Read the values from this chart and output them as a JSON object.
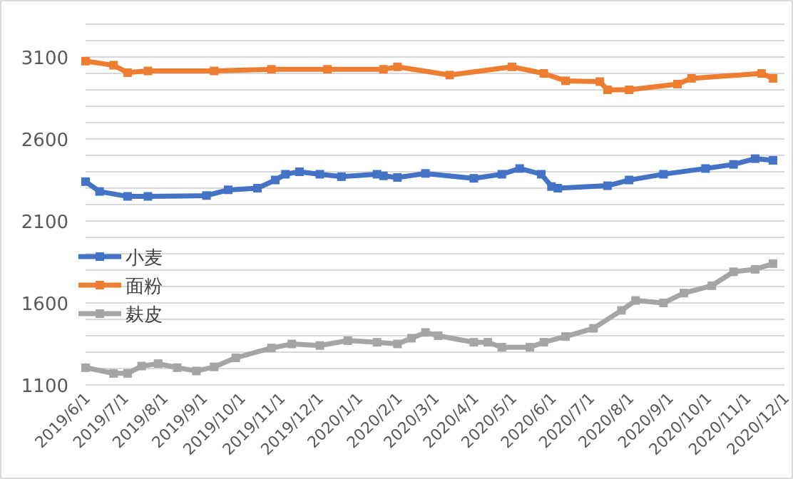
{
  "chart_data": {
    "type": "line",
    "xlim": [
      "2019-06-01",
      "2020-12-01"
    ],
    "xticks": [
      {
        "value": "2019-06-01",
        "label": "2019/6/1"
      },
      {
        "value": "2019-07-01",
        "label": "2019/7/1"
      },
      {
        "value": "2019-08-01",
        "label": "2019/8/1"
      },
      {
        "value": "2019-09-01",
        "label": "2019/9/1"
      },
      {
        "value": "2019-10-01",
        "label": "2019/10/1"
      },
      {
        "value": "2019-11-01",
        "label": "2019/11/1"
      },
      {
        "value": "2019-12-01",
        "label": "2019/12/1"
      },
      {
        "value": "2020-01-01",
        "label": "2020/1/1"
      },
      {
        "value": "2020-02-01",
        "label": "2020/2/1"
      },
      {
        "value": "2020-03-01",
        "label": "2020/3/1"
      },
      {
        "value": "2020-04-01",
        "label": "2020/4/1"
      },
      {
        "value": "2020-05-01",
        "label": "2020/5/1"
      },
      {
        "value": "2020-06-01",
        "label": "2020/6/1"
      },
      {
        "value": "2020-07-01",
        "label": "2020/7/1"
      },
      {
        "value": "2020-08-01",
        "label": "2020/8/1"
      },
      {
        "value": "2020-09-01",
        "label": "2020/9/1"
      },
      {
        "value": "2020-10-01",
        "label": "2020/10/1"
      },
      {
        "value": "2020-11-01",
        "label": "2020/11/1"
      },
      {
        "value": "2020-12-01",
        "label": "2020/12/1"
      }
    ],
    "ylim": [
      1100,
      3300
    ],
    "yticks": [
      1100,
      {
        "value": 1200,
        "label": null
      },
      {
        "value": 1300,
        "label": null
      },
      {
        "value": 1400,
        "label": null
      },
      {
        "value": 1500,
        "label": null
      },
      1600,
      {
        "value": 1700,
        "label": null
      },
      {
        "value": 1800,
        "label": null
      },
      {
        "value": 1900,
        "label": null
      },
      {
        "value": 2000,
        "label": null
      },
      2100,
      {
        "value": 2200,
        "label": null
      },
      {
        "value": 2300,
        "label": null
      },
      {
        "value": 2400,
        "label": null
      },
      {
        "value": 2500,
        "label": null
      },
      2600,
      {
        "value": 2700,
        "label": null
      },
      {
        "value": 2800,
        "label": null
      },
      {
        "value": 2900,
        "label": null
      },
      {
        "value": 3000,
        "label": null
      },
      3100,
      {
        "value": 3200,
        "label": null
      },
      {
        "value": 3300,
        "label": null
      }
    ],
    "grid": "y",
    "legend": "left",
    "marker": "square",
    "line_style": "solid",
    "series": [
      {
        "name": "小麦",
        "color": "#4472c4",
        "x": [
          "2019-06-01",
          "2019-06-12",
          "2019-07-04",
          "2019-07-20",
          "2019-09-04",
          "2019-09-21",
          "2019-10-14",
          "2019-10-28",
          "2019-11-05",
          "2019-11-16",
          "2019-12-02",
          "2019-12-19",
          "2020-01-16",
          "2020-01-21",
          "2020-02-01",
          "2020-02-23",
          "2020-04-01",
          "2020-04-23",
          "2020-05-07",
          "2020-05-24",
          "2020-06-01",
          "2020-06-06",
          "2020-07-15",
          "2020-08-01",
          "2020-08-28",
          "2020-09-30",
          "2020-10-22",
          "2020-11-08",
          "2020-11-22"
        ],
        "values": [
          2340,
          2280,
          2250,
          2250,
          2255,
          2290,
          2300,
          2350,
          2385,
          2400,
          2385,
          2370,
          2385,
          2375,
          2365,
          2390,
          2360,
          2385,
          2420,
          2385,
          2310,
          2300,
          2315,
          2350,
          2385,
          2420,
          2445,
          2480,
          2470
        ]
      },
      {
        "name": "面粉",
        "color": "#ed7d31",
        "x": [
          "2019-06-01",
          "2019-06-23",
          "2019-07-04",
          "2019-07-20",
          "2019-09-10",
          "2019-10-25",
          "2019-12-08",
          "2020-01-21",
          "2020-02-01",
          "2020-03-13",
          "2020-05-01",
          "2020-05-26",
          "2020-06-12",
          "2020-07-09",
          "2020-07-15",
          "2020-08-01",
          "2020-09-08",
          "2020-09-19",
          "2020-11-13",
          "2020-11-22"
        ],
        "values": [
          3075,
          3050,
          3005,
          3015,
          3015,
          3025,
          3025,
          3025,
          3040,
          2990,
          3040,
          3000,
          2955,
          2950,
          2900,
          2900,
          2935,
          2970,
          3000,
          2970
        ]
      },
      {
        "name": "麸皮",
        "color": "#a5a5a5",
        "x": [
          "2019-06-01",
          "2019-06-23",
          "2019-07-04",
          "2019-07-15",
          "2019-07-28",
          "2019-08-12",
          "2019-08-27",
          "2019-09-10",
          "2019-09-27",
          "2019-10-25",
          "2019-11-10",
          "2019-12-02",
          "2019-12-24",
          "2020-01-16",
          "2020-02-01",
          "2020-02-12",
          "2020-02-23",
          "2020-03-04",
          "2020-04-01",
          "2020-04-12",
          "2020-04-23",
          "2020-05-15",
          "2020-05-26",
          "2020-06-12",
          "2020-07-04",
          "2020-07-26",
          "2020-08-06",
          "2020-08-28",
          "2020-09-13",
          "2020-10-05",
          "2020-10-22",
          "2020-11-08",
          "2020-11-22"
        ],
        "values": [
          1205,
          1170,
          1170,
          1215,
          1230,
          1205,
          1185,
          1210,
          1265,
          1325,
          1350,
          1340,
          1370,
          1360,
          1350,
          1385,
          1420,
          1400,
          1360,
          1360,
          1330,
          1330,
          1360,
          1395,
          1445,
          1555,
          1615,
          1600,
          1660,
          1705,
          1790,
          1805,
          1840
        ]
      }
    ]
  }
}
